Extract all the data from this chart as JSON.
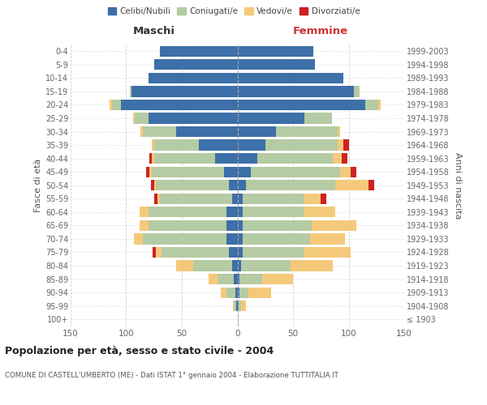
{
  "age_groups": [
    "100+",
    "95-99",
    "90-94",
    "85-89",
    "80-84",
    "75-79",
    "70-74",
    "65-69",
    "60-64",
    "55-59",
    "50-54",
    "45-49",
    "40-44",
    "35-39",
    "30-34",
    "25-29",
    "20-24",
    "15-19",
    "10-14",
    "5-9",
    "0-4"
  ],
  "birth_years": [
    "≤ 1903",
    "1904-1908",
    "1909-1913",
    "1914-1918",
    "1919-1923",
    "1924-1928",
    "1929-1933",
    "1934-1938",
    "1939-1943",
    "1944-1948",
    "1949-1953",
    "1954-1958",
    "1959-1963",
    "1964-1968",
    "1969-1973",
    "1974-1978",
    "1979-1983",
    "1984-1988",
    "1989-1993",
    "1994-1998",
    "1999-2003"
  ],
  "male": {
    "celibi": [
      0,
      1,
      2,
      3,
      5,
      8,
      10,
      10,
      10,
      5,
      8,
      12,
      20,
      35,
      55,
      80,
      105,
      95,
      80,
      75,
      70
    ],
    "coniugati": [
      0,
      2,
      8,
      15,
      35,
      60,
      75,
      70,
      70,
      65,
      65,
      65,
      55,
      40,
      30,
      12,
      8,
      2,
      0,
      0,
      0
    ],
    "vedovi": [
      0,
      1,
      5,
      8,
      15,
      5,
      8,
      8,
      8,
      2,
      2,
      2,
      2,
      2,
      2,
      2,
      2,
      0,
      0,
      0,
      0
    ],
    "divorziati": [
      0,
      0,
      0,
      0,
      0,
      3,
      0,
      0,
      0,
      3,
      3,
      3,
      2,
      0,
      0,
      0,
      0,
      0,
      0,
      0,
      0
    ]
  },
  "female": {
    "nubili": [
      0,
      1,
      2,
      2,
      3,
      5,
      5,
      5,
      5,
      5,
      8,
      12,
      18,
      25,
      35,
      60,
      115,
      105,
      95,
      70,
      68
    ],
    "coniugate": [
      0,
      2,
      8,
      20,
      45,
      55,
      60,
      62,
      55,
      55,
      80,
      80,
      68,
      65,
      55,
      25,
      12,
      5,
      0,
      0,
      0
    ],
    "vedove": [
      1,
      5,
      20,
      28,
      38,
      42,
      32,
      40,
      28,
      15,
      30,
      10,
      8,
      5,
      2,
      0,
      2,
      0,
      0,
      0,
      0
    ],
    "divorziate": [
      0,
      0,
      0,
      0,
      0,
      0,
      0,
      0,
      0,
      5,
      5,
      5,
      5,
      5,
      0,
      0,
      0,
      0,
      0,
      0,
      0
    ]
  },
  "colors": {
    "celibi": "#3d6fa8",
    "coniugati": "#b5cba3",
    "vedovi": "#f5c97a",
    "divorziati": "#cc2222"
  },
  "xlim": 150,
  "title": "Popolazione per età, sesso e stato civile - 2004",
  "subtitle": "COMUNE DI CASTELL'UMBERTO (ME) - Dati ISTAT 1° gennaio 2004 - Elaborazione TUTTITALIA.IT",
  "ylabel_left": "Fasce di età",
  "ylabel_right": "Anni di nascita",
  "xlabel_male": "Maschi",
  "xlabel_female": "Femmine",
  "bg_color": "#ffffff",
  "grid_color": "#cccccc",
  "bar_height": 0.8,
  "legend_labels": [
    "Celibi/Nubili",
    "Coniugati/e",
    "Vedovi/e",
    "Divorziati/e"
  ]
}
